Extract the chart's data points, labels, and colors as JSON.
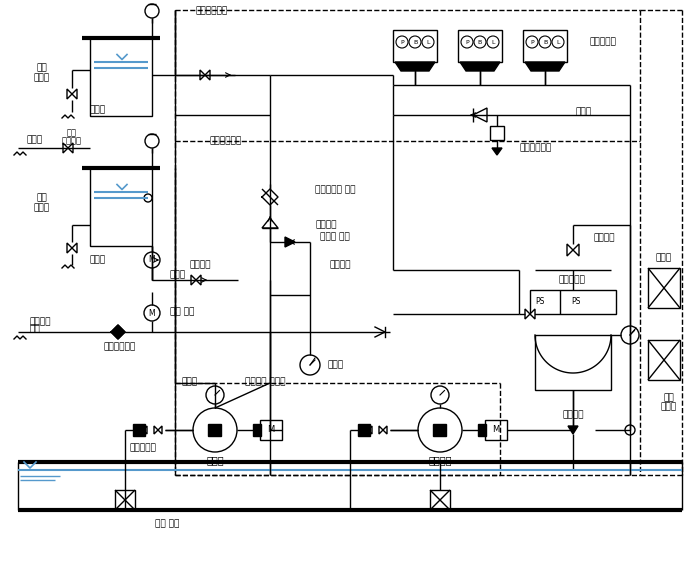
{
  "bg_color": "#ffffff",
  "line_color": "#000000",
  "blue_color": "#5599cc",
  "lw": 1.0,
  "labels": {
    "gamsugeyongbojangchi_top": "감수경보장치",
    "obo_flugwan_top": [
      "오버",
      "플루관"
    ],
    "baesugwan_top": "배수관",
    "jadong_sugeupgwan": "수급관",
    "jadong_geupsubvalve": [
      "자동",
      "급수밸브"
    ],
    "gamsugeyongbojangchi_mid": "감수경보장치",
    "obo_flugwan_mid": [
      "오버",
      "플루관"
    ],
    "baesugwan_mid": "배수관",
    "mulolrimgwan": "물올림관",
    "yuryeonggye": "유량계",
    "gaepye_valve": "개폐 밸브",
    "seongnungsihum_baegwan": [
      "성능시험",
      "배관"
    ],
    "yuryeongjobvel": "유량조절밸브",
    "gaepyeosihyeong_valve": "개폐표시형 밸브",
    "chebeuvalve": "체브밸브",
    "rillipu_valve": "릴리프 밸브",
    "sunhwanbaegwan": "순환배관",
    "apryeokgye": "압력계",
    "jingongye": "진공계",
    "peullaeksibul": "플랙시블 조인트",
    "seuteuteireino": "스트레이너",
    "jupyeompu": "주펌프",
    "chungyapyeompu": "충압펌프",
    "puteubvalve": "푸트 밸브",
    "oknaesohwageon": "옥내소화전",
    "songsugan": "송수관",
    "jadongbaesugvalve": "자동배수밸브",
    "apryeokswitchi": "압력스위치",
    "ps_left": "PS",
    "ps_right": "PS",
    "apryeokchamba": "압력챔버",
    "anjeongvalve": "안전밸브",
    "jeoban": "제어반",
    "dongyeok_jeoban": [
      "동력",
      "제어반"
    ]
  },
  "figsize": [
    6.92,
    5.67
  ],
  "dpi": 100
}
